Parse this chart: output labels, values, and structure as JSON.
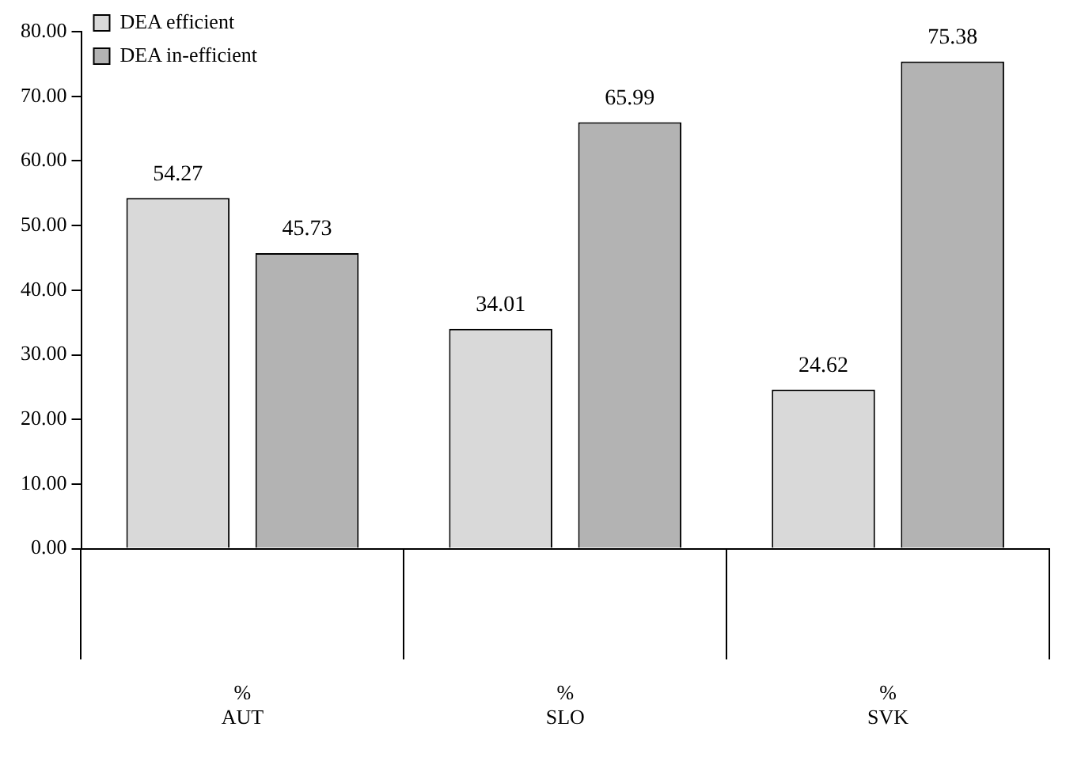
{
  "chart_data": {
    "type": "bar",
    "categories": [
      "%\nAUT",
      "%\nSLO",
      "%\nSVK"
    ],
    "series": [
      {
        "name": "DEA efficient",
        "color": "#d9d9d9",
        "values": [
          54.27,
          34.01,
          24.62
        ]
      },
      {
        "name": "DEA in-efficient",
        "color": "#b3b3b3",
        "values": [
          45.73,
          65.99,
          75.38
        ]
      }
    ],
    "ylim": [
      0,
      80
    ],
    "yticks": [
      {
        "value": 0,
        "label": "0.00"
      },
      {
        "value": 10,
        "label": "10.00"
      },
      {
        "value": 20,
        "label": "20.00"
      },
      {
        "value": 30,
        "label": "30.00"
      },
      {
        "value": 40,
        "label": "40.00"
      },
      {
        "value": 50,
        "label": "50.00"
      },
      {
        "value": 60,
        "label": "60.00"
      },
      {
        "value": 70,
        "label": "70.00"
      },
      {
        "value": 80,
        "label": "80.00"
      }
    ],
    "data_labels": true,
    "legend": "top left",
    "grid": false
  }
}
